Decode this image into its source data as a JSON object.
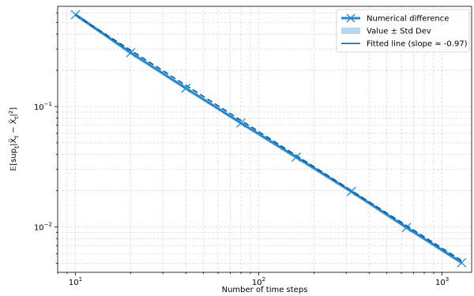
{
  "chart_data": {
    "type": "line",
    "xscale": "log",
    "yscale": "log",
    "xlabel": "Number of time steps",
    "ylabel": "E[sup_t |X̃_t − X̂_t|²]",
    "ylabel_parts": {
      "e": "𝔼",
      "sup": "sup",
      "sub": "t",
      "lhs": "X̃",
      "rhs": "X̂",
      "sup2": "2"
    },
    "xlim": [
      8,
      1450
    ],
    "ylim": [
      0.0042,
      0.68
    ],
    "x_ticks": [
      {
        "value": 10,
        "base": "10",
        "exp": "1"
      },
      {
        "value": 100,
        "base": "10",
        "exp": "2"
      },
      {
        "value": 1000,
        "base": "10",
        "exp": "3"
      }
    ],
    "y_ticks": [
      {
        "value": 0.01,
        "base": "10",
        "exp": "−2"
      },
      {
        "value": 0.1,
        "base": "10",
        "exp": "−1"
      }
    ],
    "grid": true,
    "legend_position": "top-right",
    "legend": [
      {
        "label": "Numerical difference",
        "kind": "line-marker",
        "color": "#1f8ad4"
      },
      {
        "label": "Value ± Std Dev",
        "kind": "patch",
        "color": "#b7d9ef"
      },
      {
        "label": "Fitted line (slope ≈ -0.97)",
        "kind": "line",
        "color": "#1a4f80"
      }
    ],
    "series": [
      {
        "name": "Numerical difference",
        "x": [
          10,
          20,
          40,
          80,
          160,
          320,
          640,
          1280
        ],
        "y": [
          0.58,
          0.28,
          0.142,
          0.073,
          0.038,
          0.0197,
          0.0099,
          0.00505
        ],
        "color": "#1f8ad4",
        "marker": "x"
      },
      {
        "name": "Fitted line (slope ≈ -0.97)",
        "x": [
          10,
          1280
        ],
        "y": [
          0.575,
          0.00525
        ],
        "color": "#1a4f80"
      }
    ]
  }
}
